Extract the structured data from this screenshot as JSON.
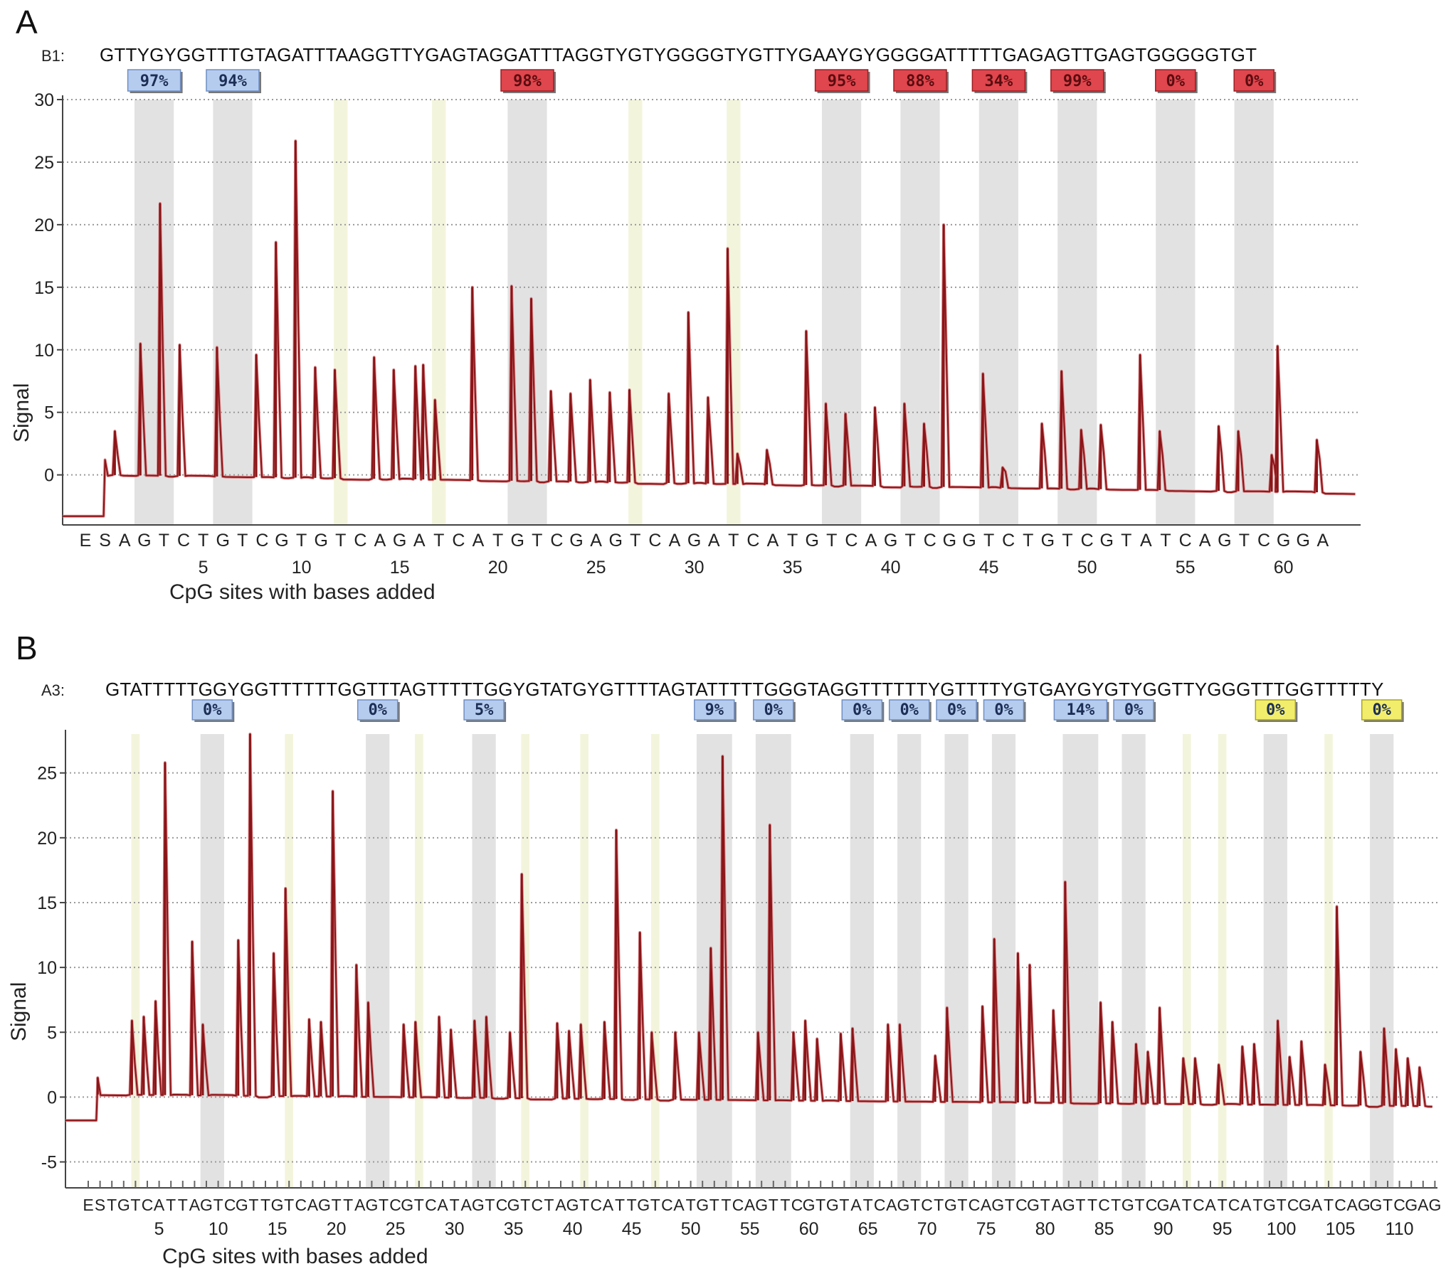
{
  "chart_data": [
    {
      "type": "line",
      "panel_letter": "A",
      "assay_label": "B1:",
      "sequence": "GTTYGYGGTTTGTAGATTTAAGGTTYGAGTAGGATTTAGGTYGTYGGGGTYGTTYGAAYGYGGGGATTTTTGAGAGTTGAGTGGGGGTGT",
      "ylabel": "Signal",
      "xlabel": "CpG sites with bases added",
      "ylim": [
        -4,
        30
      ],
      "yticks": [
        0,
        5,
        10,
        15,
        20,
        25,
        30
      ],
      "grid": true,
      "dispensation": [
        "E",
        "S",
        "A",
        "G",
        "T",
        "C",
        "T",
        "G",
        "T",
        "C",
        "G",
        "T",
        "G",
        "T",
        "C",
        "A",
        "G",
        "A",
        "T",
        "C",
        "A",
        "T",
        "G",
        "T",
        "C",
        "G",
        "A",
        "G",
        "T",
        "C",
        "A",
        "G",
        "A",
        "T",
        "C",
        "A",
        "T",
        "G",
        "T",
        "C",
        "A",
        "G",
        "T",
        "C",
        "G",
        "G",
        "T",
        "C",
        "T",
        "G",
        "T",
        "C",
        "G",
        "T",
        "A",
        "T",
        "C",
        "A",
        "G",
        "T",
        "C",
        "G",
        "G",
        "A"
      ],
      "dispensation_xticks": [
        5,
        10,
        15,
        20,
        25,
        30,
        35,
        40,
        45,
        50,
        55,
        60
      ],
      "cpg_regions": [
        [
          3,
          4
        ],
        [
          7,
          8
        ],
        [
          22,
          23
        ],
        [
          38,
          39
        ],
        [
          42,
          43
        ],
        [
          46,
          47
        ],
        [
          50,
          51
        ],
        [
          55,
          56
        ],
        [
          59,
          60
        ]
      ],
      "control_regions": [
        [
          13,
          13
        ],
        [
          18,
          18
        ],
        [
          28,
          28
        ],
        [
          33,
          33
        ]
      ],
      "methylation": [
        {
          "pos": 3.5,
          "label": "97%",
          "level": "low"
        },
        {
          "pos": 7.5,
          "label": "94%",
          "level": "low"
        },
        {
          "pos": 22.5,
          "label": "98%",
          "level": "high"
        },
        {
          "pos": 38.5,
          "label": "95%",
          "level": "high"
        },
        {
          "pos": 42.5,
          "label": "88%",
          "level": "high"
        },
        {
          "pos": 46.5,
          "label": "34%",
          "level": "high"
        },
        {
          "pos": 50.5,
          "label": "99%",
          "level": "high"
        },
        {
          "pos": 55.5,
          "label": "0%",
          "level": "high"
        },
        {
          "pos": 59.5,
          "label": "0%",
          "level": "high"
        }
      ],
      "peaks": [
        {
          "x": 1.5,
          "y": 3.5
        },
        {
          "x": 2.8,
          "y": 10.5
        },
        {
          "x": 3.8,
          "y": 21.7
        },
        {
          "x": 4.8,
          "y": 10.4
        },
        {
          "x": 6.7,
          "y": 10.2
        },
        {
          "x": 8.7,
          "y": 9.6
        },
        {
          "x": 9.7,
          "y": 18.6
        },
        {
          "x": 10.7,
          "y": 26.7
        },
        {
          "x": 11.7,
          "y": 8.6
        },
        {
          "x": 12.7,
          "y": 8.4
        },
        {
          "x": 14.7,
          "y": 9.4
        },
        {
          "x": 15.7,
          "y": 8.4
        },
        {
          "x": 16.8,
          "y": 8.7
        },
        {
          "x": 17.2,
          "y": 8.8
        },
        {
          "x": 17.8,
          "y": 6.0
        },
        {
          "x": 19.7,
          "y": 15.0
        },
        {
          "x": 21.7,
          "y": 15.1
        },
        {
          "x": 22.7,
          "y": 14.1
        },
        {
          "x": 23.7,
          "y": 6.7
        },
        {
          "x": 24.7,
          "y": 6.5
        },
        {
          "x": 25.7,
          "y": 7.6
        },
        {
          "x": 26.7,
          "y": 6.6
        },
        {
          "x": 27.7,
          "y": 6.8
        },
        {
          "x": 29.7,
          "y": 6.5
        },
        {
          "x": 30.7,
          "y": 13.0
        },
        {
          "x": 31.7,
          "y": 6.2
        },
        {
          "x": 32.7,
          "y": 18.1
        },
        {
          "x": 33.2,
          "y": 1.7
        },
        {
          "x": 34.7,
          "y": 2.0
        },
        {
          "x": 36.7,
          "y": 11.5
        },
        {
          "x": 37.7,
          "y": 5.7
        },
        {
          "x": 38.7,
          "y": 4.9
        },
        {
          "x": 40.2,
          "y": 5.4
        },
        {
          "x": 41.7,
          "y": 5.7
        },
        {
          "x": 42.7,
          "y": 4.1
        },
        {
          "x": 43.7,
          "y": 20.0
        },
        {
          "x": 45.7,
          "y": 8.1
        },
        {
          "x": 46.7,
          "y": 0.6
        },
        {
          "x": 48.7,
          "y": 4.1
        },
        {
          "x": 49.7,
          "y": 8.3
        },
        {
          "x": 50.7,
          "y": 3.6
        },
        {
          "x": 51.7,
          "y": 4.0
        },
        {
          "x": 53.7,
          "y": 9.6
        },
        {
          "x": 54.7,
          "y": 3.5
        },
        {
          "x": 57.7,
          "y": 3.9
        },
        {
          "x": 58.7,
          "y": 3.5
        },
        {
          "x": 60.4,
          "y": 1.6
        },
        {
          "x": 60.7,
          "y": 10.3
        },
        {
          "x": 62.7,
          "y": 2.8
        }
      ]
    },
    {
      "type": "line",
      "panel_letter": "B",
      "assay_label": "A3:",
      "sequence": "GTATTTTTGGYGGTTTTTTGGTTTAGTTTTTGGYGTATGYGTTTTAGTATTTTTGGGTAGGTTTTTTYGTTTTYGTGAYGYGTYGGTTYGGGTTTGGTTTTTY",
      "ylabel": "Signal",
      "xlabel": "CpG sites with bases added",
      "ylim": [
        -7,
        28
      ],
      "yticks": [
        -5,
        0,
        5,
        10,
        15,
        20,
        25
      ],
      "grid": true,
      "dispensation": [
        "E",
        "S",
        "T",
        "G",
        "T",
        "C",
        "A",
        "T",
        "T",
        "A",
        "G",
        "T",
        "C",
        "G",
        "T",
        "T",
        "G",
        "T",
        "C",
        "A",
        "G",
        "T",
        "T",
        "A",
        "G",
        "T",
        "C",
        "G",
        "T",
        "C",
        "A",
        "T",
        "A",
        "G",
        "T",
        "C",
        "G",
        "T",
        "C",
        "T",
        "A",
        "G",
        "T",
        "C",
        "A",
        "T",
        "T",
        "G",
        "T",
        "C",
        "A",
        "T",
        "G",
        "T",
        "T",
        "C",
        "A",
        "G",
        "T",
        "T",
        "C",
        "G",
        "T",
        "G",
        "T",
        "A",
        "T",
        "C",
        "A",
        "G",
        "T",
        "C",
        "T",
        "G",
        "T",
        "C",
        "A",
        "G",
        "T",
        "C",
        "G",
        "T",
        "A",
        "G",
        "T",
        "T",
        "C",
        "T",
        "G",
        "T",
        "C",
        "G",
        "A",
        "T",
        "C",
        "A",
        "T",
        "C",
        "A",
        "T",
        "G",
        "T",
        "C",
        "G",
        "A",
        "T",
        "C",
        "A",
        "G",
        "G",
        "T",
        "C",
        "G",
        "A",
        "G"
      ],
      "dispensation_xticks": [
        5,
        10,
        15,
        20,
        25,
        30,
        35,
        40,
        45,
        50,
        55,
        60,
        65,
        70,
        75,
        80,
        85,
        90,
        95,
        100,
        105,
        110
      ],
      "cpg_regions": [
        [
          10,
          11
        ],
        [
          24,
          25
        ],
        [
          33,
          34
        ],
        [
          52,
          54
        ],
        [
          57,
          59
        ],
        [
          65,
          66
        ],
        [
          69,
          70
        ],
        [
          73,
          74
        ],
        [
          77,
          78
        ],
        [
          83,
          85
        ],
        [
          88,
          89
        ],
        [
          100,
          101
        ],
        [
          109,
          110
        ]
      ],
      "control_regions": [
        [
          4,
          4
        ],
        [
          17,
          17
        ],
        [
          28,
          28
        ],
        [
          37,
          37
        ],
        [
          42,
          42
        ],
        [
          48,
          48
        ],
        [
          93,
          93
        ],
        [
          96,
          96
        ],
        [
          105,
          105
        ]
      ],
      "methylation": [
        {
          "pos": 10.5,
          "label": "0%",
          "level": "low"
        },
        {
          "pos": 24.5,
          "label": "0%",
          "level": "low"
        },
        {
          "pos": 33.5,
          "label": "5%",
          "level": "low"
        },
        {
          "pos": 53.0,
          "label": "9%",
          "level": "low"
        },
        {
          "pos": 58.0,
          "label": "0%",
          "level": "low"
        },
        {
          "pos": 65.5,
          "label": "0%",
          "level": "low"
        },
        {
          "pos": 69.5,
          "label": "0%",
          "level": "low"
        },
        {
          "pos": 73.5,
          "label": "0%",
          "level": "low"
        },
        {
          "pos": 77.5,
          "label": "0%",
          "level": "low"
        },
        {
          "pos": 84.0,
          "label": "14%",
          "level": "low"
        },
        {
          "pos": 88.5,
          "label": "0%",
          "level": "low"
        },
        {
          "pos": 100.5,
          "label": "0%",
          "level": "warn"
        },
        {
          "pos": 109.5,
          "label": "0%",
          "level": "warn"
        }
      ],
      "peaks": [
        {
          "x": 0.8,
          "y": 1.5
        },
        {
          "x": 3.7,
          "y": 5.9
        },
        {
          "x": 4.7,
          "y": 6.2
        },
        {
          "x": 5.7,
          "y": 7.4
        },
        {
          "x": 6.5,
          "y": 25.8
        },
        {
          "x": 8.8,
          "y": 12.0
        },
        {
          "x": 9.7,
          "y": 5.6
        },
        {
          "x": 12.7,
          "y": 12.1
        },
        {
          "x": 13.7,
          "y": 28.0
        },
        {
          "x": 15.7,
          "y": 11.1
        },
        {
          "x": 16.7,
          "y": 16.1
        },
        {
          "x": 18.7,
          "y": 6.0
        },
        {
          "x": 19.7,
          "y": 5.8
        },
        {
          "x": 20.7,
          "y": 23.6
        },
        {
          "x": 22.7,
          "y": 10.2
        },
        {
          "x": 23.7,
          "y": 7.3
        },
        {
          "x": 26.7,
          "y": 5.6
        },
        {
          "x": 27.7,
          "y": 5.8
        },
        {
          "x": 29.7,
          "y": 6.2
        },
        {
          "x": 30.7,
          "y": 5.2
        },
        {
          "x": 32.7,
          "y": 5.9
        },
        {
          "x": 33.7,
          "y": 6.2
        },
        {
          "x": 35.7,
          "y": 5.0
        },
        {
          "x": 36.7,
          "y": 17.2
        },
        {
          "x": 39.7,
          "y": 5.7
        },
        {
          "x": 40.7,
          "y": 5.1
        },
        {
          "x": 41.7,
          "y": 5.6
        },
        {
          "x": 43.7,
          "y": 5.8
        },
        {
          "x": 44.7,
          "y": 20.6
        },
        {
          "x": 46.7,
          "y": 12.7
        },
        {
          "x": 47.7,
          "y": 5.0
        },
        {
          "x": 49.7,
          "y": 5.0
        },
        {
          "x": 51.7,
          "y": 5.0
        },
        {
          "x": 52.7,
          "y": 11.5
        },
        {
          "x": 53.7,
          "y": 26.3
        },
        {
          "x": 56.7,
          "y": 5.0
        },
        {
          "x": 57.7,
          "y": 21.0
        },
        {
          "x": 59.7,
          "y": 5.0
        },
        {
          "x": 60.7,
          "y": 5.9
        },
        {
          "x": 61.7,
          "y": 4.5
        },
        {
          "x": 63.7,
          "y": 4.9
        },
        {
          "x": 64.7,
          "y": 5.3
        },
        {
          "x": 67.7,
          "y": 5.6
        },
        {
          "x": 68.7,
          "y": 5.6
        },
        {
          "x": 71.7,
          "y": 3.2
        },
        {
          "x": 72.7,
          "y": 6.9
        },
        {
          "x": 75.7,
          "y": 7.0
        },
        {
          "x": 76.7,
          "y": 12.2
        },
        {
          "x": 78.7,
          "y": 11.1
        },
        {
          "x": 79.7,
          "y": 10.2
        },
        {
          "x": 81.7,
          "y": 6.7
        },
        {
          "x": 82.7,
          "y": 16.6
        },
        {
          "x": 85.7,
          "y": 7.3
        },
        {
          "x": 86.7,
          "y": 5.8
        },
        {
          "x": 88.7,
          "y": 4.1
        },
        {
          "x": 89.7,
          "y": 3.5
        },
        {
          "x": 90.7,
          "y": 6.9
        },
        {
          "x": 92.7,
          "y": 3.0
        },
        {
          "x": 93.7,
          "y": 3.0
        },
        {
          "x": 95.7,
          "y": 2.5
        },
        {
          "x": 97.7,
          "y": 3.9
        },
        {
          "x": 98.7,
          "y": 4.1
        },
        {
          "x": 100.7,
          "y": 5.9
        },
        {
          "x": 101.7,
          "y": 3.1
        },
        {
          "x": 102.7,
          "y": 4.3
        },
        {
          "x": 104.7,
          "y": 2.5
        },
        {
          "x": 105.7,
          "y": 14.7
        },
        {
          "x": 107.7,
          "y": 3.5
        },
        {
          "x": 109.7,
          "y": 5.3
        },
        {
          "x": 110.7,
          "y": 3.7
        },
        {
          "x": 111.7,
          "y": 3.0
        },
        {
          "x": 112.7,
          "y": 2.3
        }
      ]
    }
  ],
  "colors": {
    "trace_dark": "#8b1518",
    "trace_light": "#d9878a",
    "cpg_band": "#e2e2e2",
    "control_band": "#f3f4dc",
    "badge_low_bg": "#b6ccef",
    "badge_low_border": "#6f8fc4",
    "badge_high_bg": "#e0464d",
    "badge_high_border": "#9b1f24",
    "badge_warn_bg": "#f2ee6c",
    "badge_warn_border": "#a9a427",
    "grid": "#9a9a9a",
    "axis": "#444444"
  }
}
